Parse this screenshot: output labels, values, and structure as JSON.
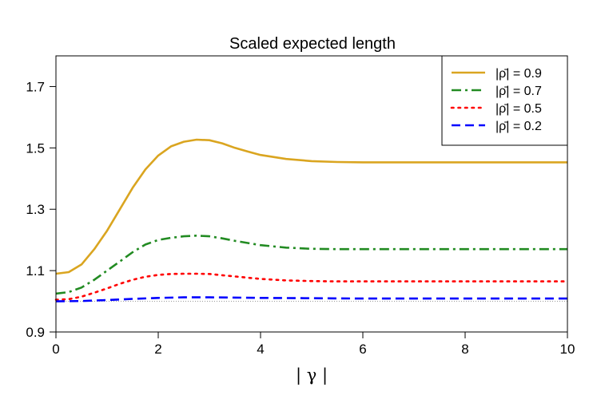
{
  "chart_data": {
    "type": "line",
    "title": "Scaled expected length",
    "xlabel": "| γ |",
    "ylabel": "",
    "xlim": [
      0,
      10
    ],
    "ylim": [
      0.9,
      1.8
    ],
    "xticks": [
      "0",
      "2",
      "4",
      "6",
      "8",
      "10"
    ],
    "yticks": [
      "0.9",
      "1.1",
      "1.3",
      "1.5",
      "1.7"
    ],
    "legend_position": "top-right",
    "reference_line": {
      "y": 1.0,
      "color": "#999999",
      "style": "dotted"
    },
    "series": [
      {
        "name": "|ρ̄| = 0.9",
        "color": "#DAA520",
        "dash": "solid",
        "x": [
          0,
          0.25,
          0.5,
          0.75,
          1,
          1.25,
          1.5,
          1.75,
          2,
          2.25,
          2.5,
          2.75,
          3,
          3.25,
          3.5,
          3.75,
          4,
          4.5,
          5,
          5.5,
          6,
          7,
          8,
          9,
          10
        ],
        "y": [
          1.09,
          1.095,
          1.12,
          1.17,
          1.23,
          1.3,
          1.37,
          1.43,
          1.475,
          1.505,
          1.52,
          1.527,
          1.525,
          1.515,
          1.5,
          1.488,
          1.477,
          1.464,
          1.457,
          1.454,
          1.453,
          1.453,
          1.453,
          1.453,
          1.453
        ]
      },
      {
        "name": "|ρ̄| = 0.7",
        "color": "#228B22",
        "dash": "dashdot",
        "x": [
          0,
          0.25,
          0.5,
          0.75,
          1,
          1.25,
          1.5,
          1.75,
          2,
          2.25,
          2.5,
          2.75,
          3,
          3.25,
          3.5,
          3.75,
          4,
          4.5,
          5,
          5.5,
          6,
          7,
          8,
          9,
          10
        ],
        "y": [
          1.025,
          1.03,
          1.045,
          1.07,
          1.1,
          1.13,
          1.16,
          1.185,
          1.2,
          1.207,
          1.212,
          1.214,
          1.212,
          1.205,
          1.197,
          1.19,
          1.183,
          1.175,
          1.171,
          1.17,
          1.17,
          1.17,
          1.17,
          1.17,
          1.17
        ]
      },
      {
        "name": "|ρ̄| = 0.5",
        "color": "#FF0000",
        "dash": "dotted",
        "x": [
          0,
          0.25,
          0.5,
          0.75,
          1,
          1.25,
          1.5,
          1.75,
          2,
          2.25,
          2.5,
          2.75,
          3,
          3.25,
          3.5,
          3.75,
          4,
          4.5,
          5,
          5.5,
          6,
          7,
          8,
          9,
          10
        ],
        "y": [
          1.005,
          1.007,
          1.015,
          1.028,
          1.042,
          1.057,
          1.07,
          1.08,
          1.086,
          1.089,
          1.09,
          1.09,
          1.089,
          1.085,
          1.081,
          1.077,
          1.073,
          1.068,
          1.066,
          1.065,
          1.065,
          1.065,
          1.065,
          1.065,
          1.065
        ]
      },
      {
        "name": "|ρ̄| = 0.2",
        "color": "#0000FF",
        "dash": "dashed",
        "x": [
          0,
          0.5,
          1,
          1.5,
          2,
          2.5,
          3,
          3.5,
          4,
          5,
          6,
          7,
          8,
          9,
          10
        ],
        "y": [
          1.0,
          1.001,
          1.004,
          1.008,
          1.011,
          1.013,
          1.013,
          1.012,
          1.011,
          1.01,
          1.009,
          1.009,
          1.009,
          1.009,
          1.009
        ]
      }
    ]
  }
}
